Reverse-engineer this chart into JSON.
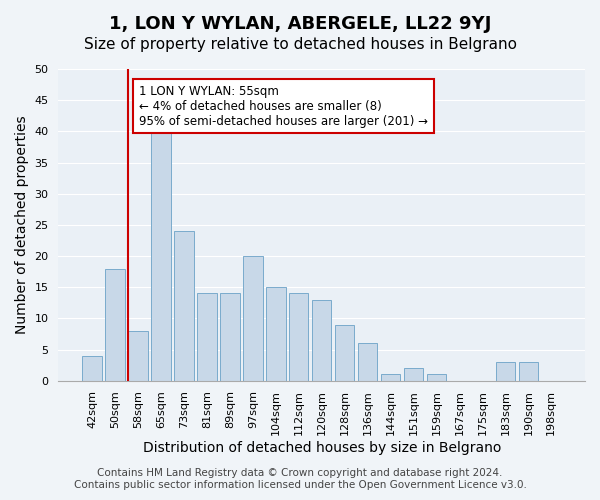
{
  "title": "1, LON Y WYLAN, ABERGELE, LL22 9YJ",
  "subtitle": "Size of property relative to detached houses in Belgrano",
  "xlabel": "Distribution of detached houses by size in Belgrano",
  "ylabel": "Number of detached properties",
  "bar_labels": [
    "42sqm",
    "50sqm",
    "58sqm",
    "65sqm",
    "73sqm",
    "81sqm",
    "89sqm",
    "97sqm",
    "104sqm",
    "112sqm",
    "120sqm",
    "128sqm",
    "136sqm",
    "144sqm",
    "151sqm",
    "159sqm",
    "167sqm",
    "175sqm",
    "183sqm",
    "190sqm",
    "198sqm"
  ],
  "bar_values": [
    4,
    18,
    8,
    41,
    24,
    14,
    14,
    20,
    15,
    14,
    13,
    9,
    6,
    1,
    2,
    1,
    0,
    0,
    3,
    3,
    0
  ],
  "bar_color": "#c8d8e8",
  "bar_edge_color": "#7aabcc",
  "vline_color": "#cc0000",
  "vline_pos": 1.575,
  "annotation_text": "1 LON Y WYLAN: 55sqm\n← 4% of detached houses are smaller (8)\n95% of semi-detached houses are larger (201) →",
  "annotation_box_color": "#ffffff",
  "annotation_box_edge": "#cc0000",
  "ylim": [
    0,
    50
  ],
  "yticks": [
    0,
    5,
    10,
    15,
    20,
    25,
    30,
    35,
    40,
    45,
    50
  ],
  "footer_line1": "Contains HM Land Registry data © Crown copyright and database right 2024.",
  "footer_line2": "Contains public sector information licensed under the Open Government Licence v3.0.",
  "bg_color": "#f0f4f8",
  "plot_bg_color": "#eaf0f6",
  "grid_color": "#ffffff",
  "title_fontsize": 13,
  "subtitle_fontsize": 11,
  "axis_label_fontsize": 10,
  "tick_fontsize": 8,
  "footer_fontsize": 7.5
}
